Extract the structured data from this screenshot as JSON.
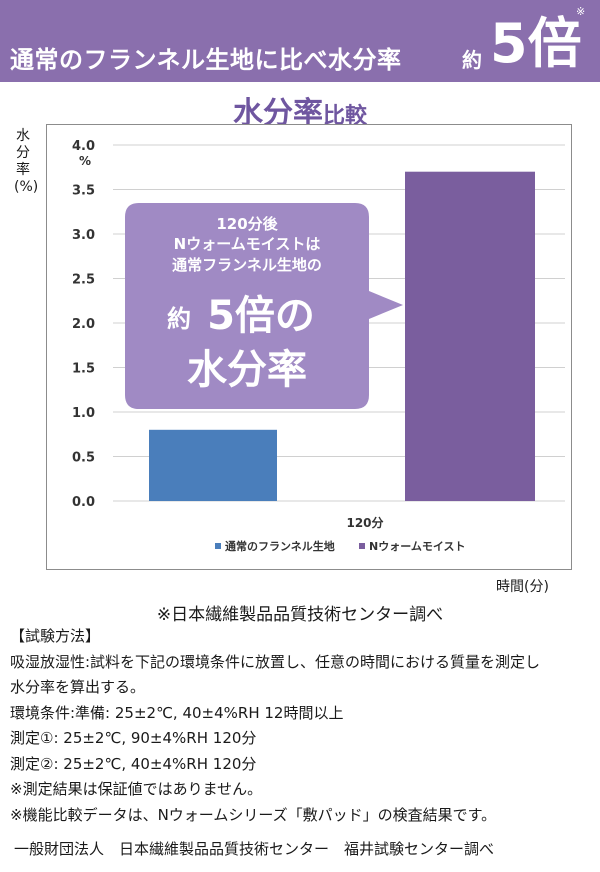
{
  "banner": {
    "headline": "通常のフランネル生地に比べ水分率",
    "approx": "約",
    "multiplier": "5倍",
    "note_mark": "※"
  },
  "subtitle": {
    "main": "水分率",
    "suffix": "比較"
  },
  "colors": {
    "banner": "#8a6fad",
    "accent_text": "#6f56a0",
    "series_regular": "#4a7ebb",
    "series_nwarm": "#7a5e9e",
    "callout": "#a08ac4"
  },
  "chart_data": {
    "type": "bar",
    "ylabel": "水分率(%)",
    "yunit": "%",
    "xlabel": "時間(分)",
    "ylim": [
      0,
      4.0
    ],
    "yticks": [
      "0.0",
      "0.5",
      "1.0",
      "1.5",
      "2.0",
      "2.5",
      "3.0",
      "3.5",
      "4.0"
    ],
    "categories": [
      "120分"
    ],
    "series": [
      {
        "name": "通常のフランネル生地",
        "values": [
          0.8
        ]
      },
      {
        "name": "Nウォームモイスト",
        "values": [
          3.7
        ]
      }
    ],
    "grid": true,
    "legend": "bottom",
    "callout": {
      "line1": "120分後",
      "line2": "Nウォームモイストは",
      "line3": "通常フランネル生地の",
      "big_prefix": "約",
      "big1": "5倍の",
      "big2": "水分率"
    }
  },
  "source": "※日本繊維製品品質技術センター調べ",
  "method": {
    "heading": "【試験方法】",
    "line1": "吸湿放湿性:試料を下記の環境条件に放置し、任意の時間における質量を測定し",
    "line2": "水分率を算出する。",
    "line3": "環境条件:準備: 25±2℃, 40±4%RH 12時間以上",
    "line4": "測定①: 25±2℃, 90±4%RH 120分",
    "line5": "測定②: 25±2℃, 40±4%RH 120分",
    "line6": "※測定結果は保証値ではありません。",
    "line7": "※機能比較データは、Nウォームシリーズ「敷パッド」の検査結果です。"
  },
  "footer": "一般財団法人　日本繊維製品品質技術センター　福井試験センター調べ"
}
